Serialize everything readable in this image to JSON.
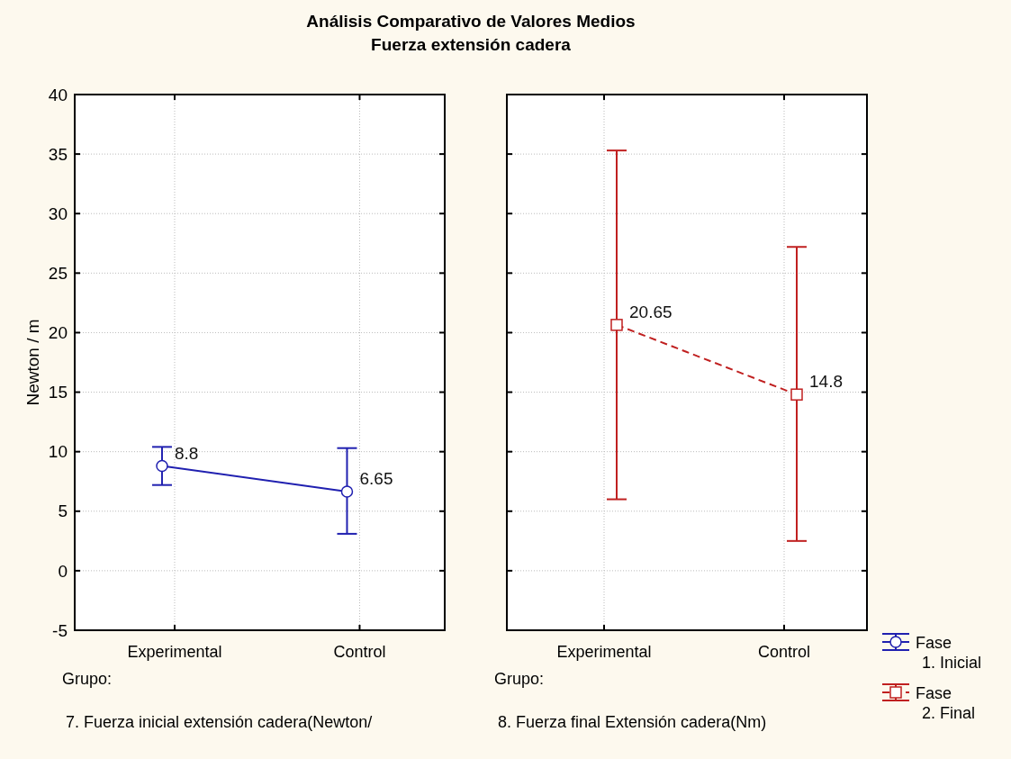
{
  "chart_data": [
    {
      "type": "line",
      "title": "Análisis Comparativo de Valores Medios",
      "subtitle": "Fuerza extensión cadera",
      "ylabel": "Newton / m",
      "xlabel": "7. Fuerza inicial extensión cadera(Newton/",
      "annotations": [
        "Grupo:"
      ],
      "categories": [
        "Experimental",
        "Control"
      ],
      "series": [
        {
          "name": "Fase 1. Inicial",
          "color": "#2020b0",
          "values": [
            8.8,
            6.65
          ],
          "errors": [
            [
              7.2,
              10.4
            ],
            [
              3.1,
              10.3
            ]
          ],
          "marker": "circle",
          "line_style": "solid"
        }
      ],
      "ylim": [
        -5,
        40
      ],
      "yticks": [
        -5,
        0,
        5,
        10,
        15,
        20,
        25,
        30,
        35,
        40
      ],
      "grid": true,
      "data_labels": true,
      "legend": "bottom right"
    },
    {
      "type": "line",
      "xlabel": "8. Fuerza final Extensión cadera(Nm)",
      "annotations": [
        "Grupo:"
      ],
      "categories": [
        "Experimental",
        "Control"
      ],
      "series": [
        {
          "name": "Fase 2. Final",
          "color": "#c02020",
          "values": [
            20.65,
            14.8
          ],
          "errors": [
            [
              6.0,
              35.3
            ],
            [
              2.5,
              27.2
            ]
          ],
          "marker": "square",
          "line_style": "dashed"
        }
      ],
      "ylim": [
        -5,
        40
      ],
      "yticks": [
        -5,
        0,
        5,
        10,
        15,
        20,
        25,
        30,
        35,
        40
      ],
      "grid": true,
      "data_labels": true,
      "legend": "bottom right",
      "tick_labels": "x"
    }
  ]
}
